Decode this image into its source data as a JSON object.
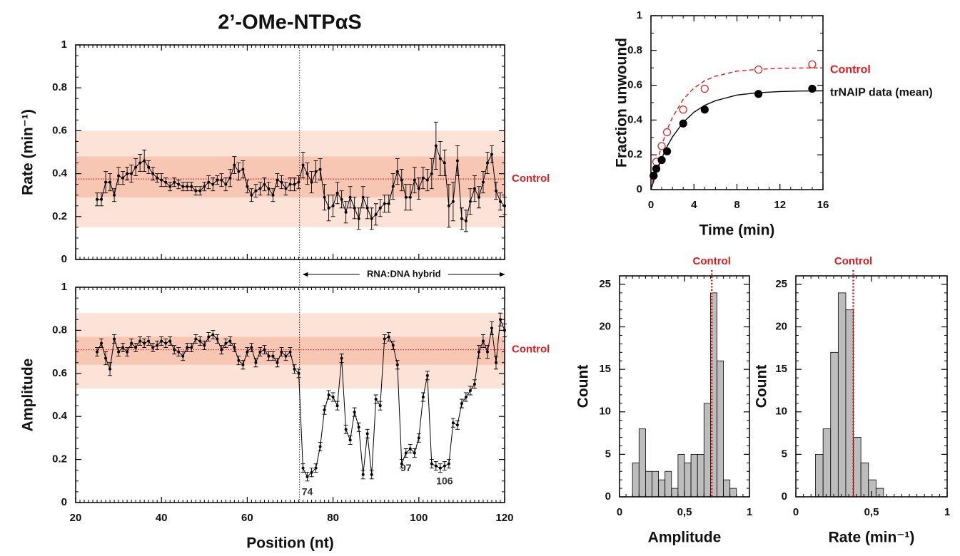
{
  "chart_data": [
    {
      "type": "line",
      "title": "2’-OMe-NTPαS",
      "ylabel": "Rate (min⁻¹)",
      "x": [
        25,
        26,
        27,
        28,
        29,
        30,
        31,
        32,
        33,
        34,
        35,
        36,
        37,
        38,
        39,
        40,
        41,
        42,
        43,
        44,
        45,
        46,
        47,
        48,
        49,
        50,
        51,
        52,
        53,
        54,
        55,
        56,
        57,
        58,
        59,
        60,
        61,
        62,
        63,
        64,
        65,
        66,
        67,
        68,
        69,
        70,
        71,
        72,
        73,
        74,
        75,
        76,
        77,
        78,
        79,
        80,
        81,
        82,
        83,
        84,
        85,
        86,
        87,
        88,
        89,
        90,
        91,
        92,
        93,
        94,
        95,
        96,
        97,
        98,
        99,
        100,
        101,
        102,
        103,
        104,
        105,
        106,
        107,
        108,
        109,
        110,
        111,
        112,
        113,
        114,
        115,
        116,
        117,
        118,
        119,
        120
      ],
      "series": [
        {
          "color": "#000000",
          "values": [
            0.28,
            0.28,
            0.36,
            0.36,
            0.3,
            0.39,
            0.38,
            0.4,
            0.4,
            0.43,
            0.45,
            0.46,
            0.43,
            0.4,
            0.38,
            0.37,
            0.36,
            0.34,
            0.36,
            0.35,
            0.34,
            0.34,
            0.34,
            0.32,
            0.32,
            0.34,
            0.36,
            0.35,
            0.37,
            0.37,
            0.35,
            0.38,
            0.44,
            0.41,
            0.42,
            0.34,
            0.3,
            0.32,
            0.33,
            0.35,
            0.33,
            0.3,
            0.37,
            0.36,
            0.33,
            0.35,
            0.35,
            0.36,
            0.44,
            0.4,
            0.36,
            0.41,
            0.42,
            0.29,
            0.24,
            0.25,
            0.31,
            0.28,
            0.22,
            0.29,
            0.24,
            0.19,
            0.29,
            0.24,
            0.19,
            0.21,
            0.24,
            0.26,
            0.26,
            0.34,
            0.41,
            0.37,
            0.29,
            0.29,
            0.37,
            0.33,
            0.38,
            0.37,
            0.4,
            0.53,
            0.47,
            0.45,
            0.25,
            0.27,
            0.46,
            0.19,
            0.18,
            0.27,
            0.33,
            0.29,
            0.36,
            0.45,
            0.49,
            0.32,
            0.27,
            0.25
          ],
          "errors": [
            0.03,
            0.03,
            0.05,
            0.04,
            0.03,
            0.04,
            0.03,
            0.03,
            0.04,
            0.04,
            0.04,
            0.05,
            0.03,
            0.03,
            0.02,
            0.03,
            0.02,
            0.02,
            0.02,
            0.02,
            0.02,
            0.02,
            0.02,
            0.02,
            0.02,
            0.02,
            0.03,
            0.03,
            0.02,
            0.03,
            0.03,
            0.04,
            0.04,
            0.04,
            0.04,
            0.03,
            0.03,
            0.03,
            0.03,
            0.03,
            0.03,
            0.03,
            0.03,
            0.03,
            0.03,
            0.03,
            0.03,
            0.03,
            0.06,
            0.05,
            0.05,
            0.05,
            0.05,
            0.06,
            0.06,
            0.05,
            0.05,
            0.04,
            0.05,
            0.05,
            0.05,
            0.05,
            0.05,
            0.05,
            0.05,
            0.05,
            0.04,
            0.04,
            0.04,
            0.06,
            0.06,
            0.05,
            0.06,
            0.06,
            0.06,
            0.05,
            0.05,
            0.05,
            0.07,
            0.11,
            0.08,
            0.06,
            0.1,
            0.09,
            0.07,
            0.05,
            0.05,
            0.06,
            0.06,
            0.05,
            0.05,
            0.05,
            0.04,
            0.04,
            0.04,
            0.04
          ]
        }
      ],
      "bands": [
        [
          0.15,
          0.6
        ],
        [
          0.29,
          0.48
        ]
      ],
      "control": {
        "value": 0.375,
        "label": "Control"
      },
      "divider": 72.2,
      "region": {
        "label": "RNA:DNA hybrid",
        "start": 73,
        "end": 120
      },
      "xlim": [
        20,
        120
      ],
      "ylim": [
        0,
        1
      ],
      "yticks": [
        0,
        0.2,
        0.4,
        0.6,
        0.8,
        1
      ]
    },
    {
      "type": "line",
      "ylabel": "Amplitude",
      "xlabel": "Position (nt)",
      "x": [
        25,
        26,
        27,
        28,
        29,
        30,
        31,
        32,
        33,
        34,
        35,
        36,
        37,
        38,
        39,
        40,
        41,
        42,
        43,
        44,
        45,
        46,
        47,
        48,
        49,
        50,
        51,
        52,
        53,
        54,
        55,
        56,
        57,
        58,
        59,
        60,
        61,
        62,
        63,
        64,
        65,
        66,
        67,
        68,
        69,
        70,
        71,
        72,
        73,
        74,
        75,
        76,
        77,
        78,
        79,
        80,
        81,
        82,
        83,
        84,
        85,
        86,
        87,
        88,
        89,
        90,
        91,
        92,
        93,
        94,
        95,
        96,
        97,
        98,
        99,
        100,
        101,
        102,
        103,
        104,
        105,
        106,
        107,
        108,
        109,
        110,
        111,
        112,
        113,
        114,
        115,
        116,
        117,
        118,
        119,
        120
      ],
      "series": [
        {
          "color": "#000000",
          "values": [
            0.7,
            0.74,
            0.67,
            0.62,
            0.76,
            0.7,
            0.72,
            0.7,
            0.74,
            0.72,
            0.75,
            0.74,
            0.75,
            0.72,
            0.73,
            0.75,
            0.74,
            0.75,
            0.71,
            0.7,
            0.68,
            0.72,
            0.72,
            0.76,
            0.75,
            0.73,
            0.77,
            0.78,
            0.76,
            0.71,
            0.74,
            0.75,
            0.72,
            0.66,
            0.64,
            0.7,
            0.72,
            0.65,
            0.7,
            0.71,
            0.68,
            0.68,
            0.65,
            0.7,
            0.68,
            0.7,
            0.62,
            0.6,
            0.16,
            0.12,
            0.14,
            0.16,
            0.26,
            0.43,
            0.5,
            0.49,
            0.45,
            0.67,
            0.34,
            0.29,
            0.42,
            0.35,
            0.13,
            0.32,
            0.13,
            0.48,
            0.45,
            0.76,
            0.77,
            0.73,
            0.64,
            0.18,
            0.23,
            0.25,
            0.23,
            0.3,
            0.49,
            0.59,
            0.18,
            0.17,
            0.16,
            0.17,
            0.18,
            0.37,
            0.36,
            0.46,
            0.49,
            0.52,
            0.55,
            0.7,
            0.75,
            0.7,
            0.81,
            0.65,
            0.85,
            0.8
          ],
          "errors": [
            0.02,
            0.02,
            0.03,
            0.03,
            0.02,
            0.02,
            0.02,
            0.02,
            0.02,
            0.02,
            0.02,
            0.02,
            0.02,
            0.02,
            0.02,
            0.02,
            0.02,
            0.02,
            0.02,
            0.02,
            0.02,
            0.02,
            0.02,
            0.02,
            0.02,
            0.02,
            0.02,
            0.02,
            0.02,
            0.02,
            0.02,
            0.02,
            0.02,
            0.02,
            0.02,
            0.02,
            0.02,
            0.02,
            0.02,
            0.02,
            0.02,
            0.02,
            0.02,
            0.02,
            0.02,
            0.02,
            0.02,
            0.02,
            0.02,
            0.02,
            0.02,
            0.02,
            0.02,
            0.02,
            0.02,
            0.02,
            0.02,
            0.02,
            0.02,
            0.02,
            0.02,
            0.02,
            0.02,
            0.02,
            0.02,
            0.02,
            0.02,
            0.02,
            0.02,
            0.02,
            0.02,
            0.02,
            0.02,
            0.02,
            0.02,
            0.02,
            0.02,
            0.02,
            0.02,
            0.02,
            0.02,
            0.02,
            0.02,
            0.02,
            0.02,
            0.02,
            0.02,
            0.02,
            0.02,
            0.03,
            0.03,
            0.03,
            0.03,
            0.03,
            0.03,
            0.03
          ]
        }
      ],
      "bands": [
        [
          0.53,
          0.88
        ],
        [
          0.64,
          0.77
        ]
      ],
      "control": {
        "value": 0.71,
        "label": "Control"
      },
      "point_labels": [
        74,
        97,
        106
      ],
      "xlim": [
        20,
        120
      ],
      "ylim": [
        0,
        1
      ],
      "xticks": [
        20,
        40,
        60,
        80,
        100,
        120
      ],
      "yticks": [
        0,
        0.2,
        0.4,
        0.6,
        0.8,
        1
      ]
    },
    {
      "type": "scatter",
      "xlabel": "Time (min)",
      "ylabel": "Fraction unwound",
      "series": [
        {
          "name": "Control",
          "color": "#e31a1c",
          "marker": "open",
          "dashed": true,
          "x": [
            0.25,
            0.5,
            1,
            1.5,
            3,
            5,
            10,
            15
          ],
          "values": [
            0.08,
            0.16,
            0.25,
            0.33,
            0.46,
            0.58,
            0.69,
            0.72
          ],
          "fit_x": [
            0,
            0.5,
            1,
            1.5,
            2,
            3,
            4,
            5,
            6,
            8,
            10,
            12,
            14,
            16
          ],
          "fit_values": [
            0,
            0.141,
            0.254,
            0.344,
            0.415,
            0.519,
            0.584,
            0.626,
            0.652,
            0.681,
            0.692,
            0.697,
            0.699,
            0.7
          ]
        },
        {
          "name": "trNAIP data (mean)",
          "color": "#000000",
          "marker": "filled",
          "dashed": false,
          "x": [
            0.25,
            0.5,
            1,
            1.5,
            3,
            5,
            10,
            15
          ],
          "values": [
            0.08,
            0.12,
            0.17,
            0.22,
            0.38,
            0.46,
            0.55,
            0.58
          ],
          "fit_x": [
            0,
            0.5,
            1,
            1.5,
            2,
            3,
            4,
            5,
            6,
            8,
            10,
            12,
            14,
            16
          ],
          "fit_values": [
            0,
            0.098,
            0.18,
            0.248,
            0.303,
            0.387,
            0.445,
            0.485,
            0.511,
            0.544,
            0.557,
            0.564,
            0.567,
            0.568
          ]
        }
      ],
      "xlim": [
        0,
        16
      ],
      "ylim": [
        0,
        1
      ],
      "xticks": [
        0,
        4,
        8,
        12,
        16
      ],
      "yticks": [
        0,
        0.2,
        0.4,
        0.6,
        0.8,
        1
      ]
    },
    {
      "type": "histogram",
      "xlabel": "Amplitude",
      "ylabel": "Count",
      "color": "#bdbdbd",
      "bins": [
        0.1,
        0.15,
        0.2,
        0.25,
        0.3,
        0.35,
        0.4,
        0.45,
        0.5,
        0.55,
        0.6,
        0.65,
        0.7,
        0.75,
        0.8,
        0.85,
        0.9
      ],
      "values": [
        4,
        8,
        3,
        3,
        2,
        3,
        1,
        5,
        4,
        5,
        5,
        11,
        24,
        16,
        2,
        1
      ],
      "control": {
        "value": 0.71,
        "label": "Control",
        "color": "#e31a1c"
      },
      "xlim": [
        0,
        1
      ],
      "ylim": [
        0,
        26
      ],
      "xticks": [
        0,
        {
          "value": 0.5,
          "label": "0,5"
        },
        1
      ],
      "yticks": [
        0,
        5,
        10,
        15,
        20,
        25
      ]
    },
    {
      "type": "histogram",
      "xlabel": "Rate (min⁻¹)",
      "ylabel": "Count",
      "color": "#bdbdbd",
      "bins": [
        0.13,
        0.18,
        0.23,
        0.28,
        0.33,
        0.38,
        0.43,
        0.48,
        0.53,
        0.58
      ],
      "values": [
        5,
        8,
        17,
        24,
        22,
        7,
        4,
        2,
        1
      ],
      "control": {
        "value": 0.38,
        "label": "Control",
        "color": "#e31a1c"
      },
      "xlim": [
        0,
        1
      ],
      "ylim": [
        0,
        26
      ],
      "xticks": [
        0,
        {
          "value": 0.5,
          "label": "0,5"
        },
        1
      ],
      "yticks": [
        0,
        5,
        10,
        15,
        20,
        25
      ]
    }
  ]
}
